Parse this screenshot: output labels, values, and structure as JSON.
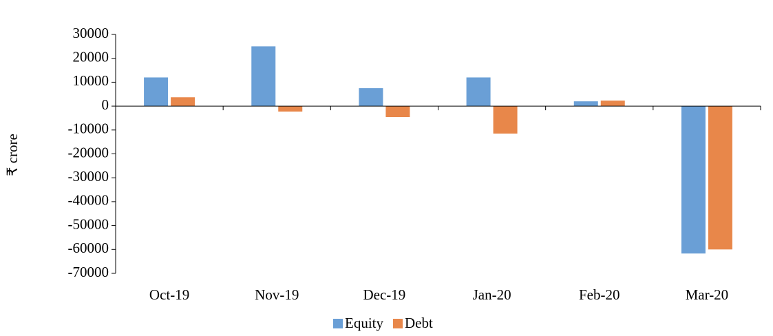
{
  "chart_data": {
    "type": "bar",
    "ylabel": "₹ crore",
    "categories": [
      "Oct-19",
      "Nov-19",
      "Dec-19",
      "Jan-20",
      "Feb-20",
      "Mar-20"
    ],
    "series": [
      {
        "name": "Equity",
        "color": "#6a9fd6",
        "values": [
          12000,
          25000,
          7500,
          12000,
          2000,
          -61700
        ]
      },
      {
        "name": "Debt",
        "color": "#e8874a",
        "values": [
          3700,
          -2300,
          -4600,
          -11500,
          2300,
          -60000
        ]
      }
    ],
    "ylim": [
      -70000,
      30000
    ],
    "yticks": [
      -70000,
      -60000,
      -50000,
      -40000,
      -30000,
      -20000,
      -10000,
      0,
      10000,
      20000,
      30000
    ],
    "legend": "bottom"
  }
}
